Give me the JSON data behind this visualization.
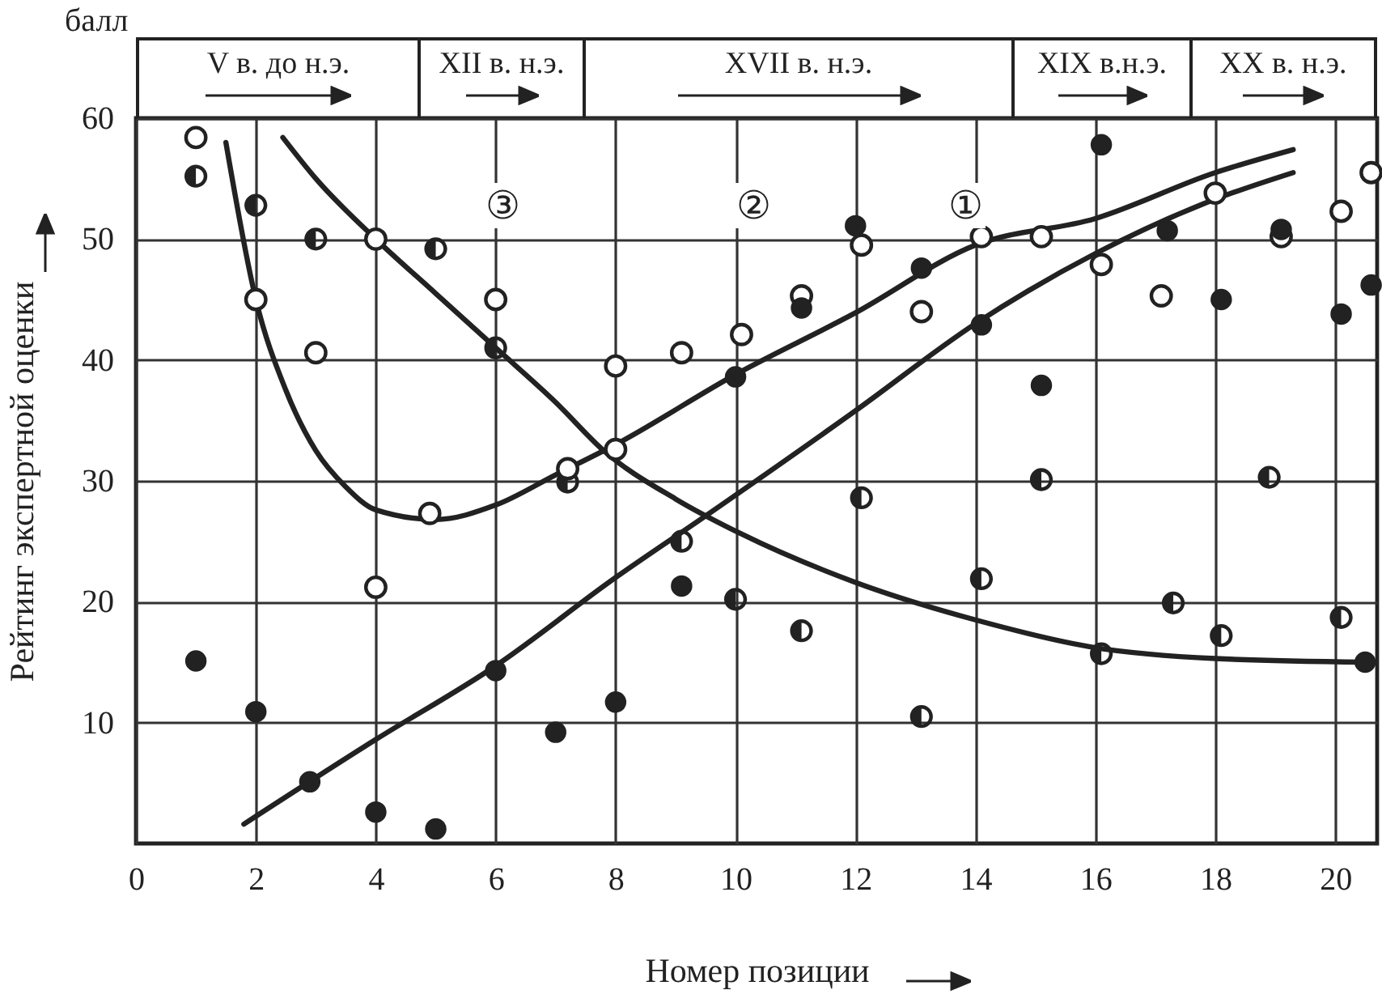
{
  "chart_data": {
    "type": "scatter",
    "xlabel": "Номер позиции",
    "ylabel": "Рейтинг экспертной оценки",
    "xlim": [
      0,
      20.7
    ],
    "ylim": [
      0,
      60
    ],
    "xticks": [
      0,
      2,
      4,
      6,
      8,
      10,
      12,
      14,
      16,
      18,
      20
    ],
    "yticks": [
      10,
      20,
      30,
      40,
      50,
      60
    ],
    "grid": true,
    "annotations": [
      "балл",
      "V в. до н.э.",
      "XII в. н.э.",
      "XVII в. н.э.",
      "XIX в.н.э.",
      "XX в. н.э.",
      "①",
      "②",
      "③"
    ],
    "series": [
      {
        "type": "line",
        "color": "#222222",
        "x": [
          1.8,
          4,
          6,
          8,
          9.5,
          12,
          14,
          16,
          18,
          19.3
        ],
        "values": [
          1.6,
          8.6,
          14.7,
          22,
          27.1,
          35.8,
          43,
          48.8,
          53.3,
          55.5
        ]
      },
      {
        "type": "line",
        "color": "#222222",
        "x": [
          1.5,
          2,
          2.5,
          3,
          3.5,
          4,
          5,
          6,
          7,
          8,
          10,
          12,
          14,
          16,
          18,
          19.3
        ],
        "values": [
          58,
          45,
          37.5,
          32.5,
          29.5,
          27.6,
          26.8,
          28,
          30.5,
          33,
          38.8,
          43.9,
          49.5,
          51.7,
          55.5,
          57.4
        ]
      },
      {
        "type": "line",
        "color": "#222222",
        "x": [
          2.45,
          3,
          4,
          5,
          6,
          7,
          7.8,
          9,
          10.1,
          12,
          14,
          16,
          18,
          20.5
        ],
        "values": [
          58.4,
          55,
          50,
          45.5,
          41,
          36.5,
          32.5,
          28.5,
          25.6,
          21.6,
          18.5,
          16.2,
          15.3,
          15
        ]
      },
      {
        "color": "#222222",
        "marker": "half-circle",
        "x": [
          1,
          2,
          3,
          5,
          6,
          7.2,
          9.1,
          10,
          11.1,
          12.1,
          13.1,
          14.1,
          15.1,
          16.1,
          17.3,
          18.1,
          18.9,
          20.1
        ],
        "values": [
          55.2,
          52.8,
          50,
          49.2,
          41,
          29.9,
          25,
          20.2,
          17.6,
          28.6,
          10.5,
          21.9,
          30.1,
          15.7,
          19.9,
          17.2,
          30.3,
          18.7
        ]
      },
      {
        "marker": "circle",
        "color": "#ffffff",
        "x": [
          1,
          2,
          3,
          4,
          4,
          4.9,
          6,
          7.2,
          8,
          8,
          9.1,
          10.1,
          11.1,
          12.1,
          13.1,
          14.1,
          15.1,
          16.1,
          17.1,
          18,
          19.1,
          20.1,
          20.6
        ],
        "values": [
          58.4,
          45,
          40.6,
          50,
          21.2,
          27.3,
          45,
          31,
          39.5,
          32.6,
          40.6,
          42.1,
          45.3,
          49.5,
          44,
          50.2,
          50.2,
          47.9,
          45.3,
          53.8,
          50.2,
          52.3,
          55.5
        ]
      },
      {
        "marker": "circle",
        "color": "#222222",
        "x": [
          1,
          2,
          2.9,
          4,
          5,
          6,
          7,
          8,
          9.1,
          10,
          11.1,
          12,
          13.1,
          14.1,
          15.1,
          16.1,
          17.2,
          18.1,
          19.1,
          20.1,
          20.5,
          20.6
        ],
        "values": [
          15.1,
          10.9,
          5.1,
          2.6,
          1.2,
          14.3,
          9.2,
          11.7,
          21.3,
          38.6,
          44.3,
          51.1,
          47.6,
          42.9,
          37.9,
          57.8,
          50.7,
          45,
          50.8,
          43.8,
          15,
          46.2
        ]
      }
    ]
  }
}
